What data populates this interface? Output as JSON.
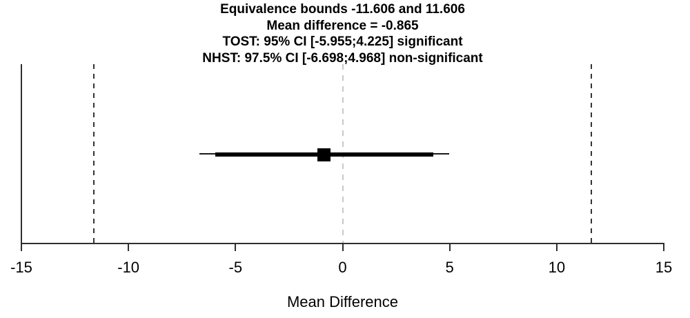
{
  "chart_data": {
    "type": "scatter",
    "subtype": "tost-equivalence-errorbar",
    "title_lines": [
      "Equivalence bounds -11.606 and 11.606",
      "Mean difference = -0.865",
      "TOST: 95% CI [-5.955;4.225] significant",
      "NHST: 97.5% CI [-6.698;4.968] non-significant"
    ],
    "xlabel": "Mean Difference",
    "xlim": [
      -15,
      15
    ],
    "x_ticks": [
      -15,
      -10,
      -5,
      0,
      5,
      10,
      15
    ],
    "x_tick_labels": [
      "-15",
      "-10",
      "-5",
      "0",
      "5",
      "10",
      "15"
    ],
    "equivalence_bounds": {
      "lower": -11.606,
      "upper": 11.606
    },
    "mean_difference": -0.865,
    "tost_ci_95": {
      "lower": -5.955,
      "upper": 4.225
    },
    "nhst_ci_975": {
      "lower": -6.698,
      "upper": 4.968
    },
    "zero_reference": 0,
    "grid": false,
    "legend": null,
    "colors": {
      "bounds_line": "#333333",
      "zero_line": "#c9c9c9",
      "estimate": "#000000",
      "axis": "#2e2e2e",
      "text": "#000000"
    }
  }
}
